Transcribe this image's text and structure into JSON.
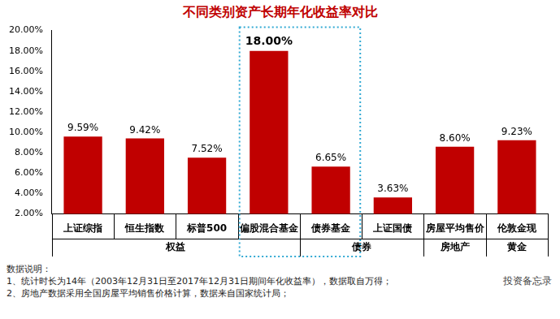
{
  "chart_data": {
    "type": "bar",
    "title": "不同类别资产长期年化收益率对比",
    "categories": [
      "上证综指",
      "恒生指数",
      "标普500",
      "偏股混合基金",
      "债券基金",
      "上证国债",
      "房屋平均售价",
      "伦敦金现"
    ],
    "values": [
      9.59,
      9.42,
      7.52,
      18.0,
      6.65,
      3.63,
      8.6,
      9.23
    ],
    "value_labels": [
      "9.59%",
      "9.42%",
      "7.52%",
      "18.00%",
      "6.65%",
      "3.63%",
      "8.60%",
      "9.23%"
    ],
    "groups": [
      {
        "name": "权益",
        "categories": [
          "上证综指",
          "恒生指数",
          "标普500",
          "偏股混合基金"
        ]
      },
      {
        "name": "债券",
        "categories": [
          "债券基金",
          "上证国债"
        ]
      },
      {
        "name": "房地产",
        "categories": [
          "房屋平均售价"
        ]
      },
      {
        "name": "黄金",
        "categories": [
          "伦敦金现"
        ]
      }
    ],
    "color": "#c00000",
    "ylim": [
      2,
      20
    ],
    "yticks": [
      {
        "value": 2,
        "label": "2.00%"
      },
      {
        "value": 4,
        "label": "4.00%"
      },
      {
        "value": 6,
        "label": "6.00%"
      },
      {
        "value": 8,
        "label": "8.00%"
      },
      {
        "value": 10,
        "label": "10.00%"
      },
      {
        "value": 12,
        "label": "12.00%"
      },
      {
        "value": 14,
        "label": "14.00%"
      },
      {
        "value": 16,
        "label": "16.00%"
      },
      {
        "value": 18,
        "label": "18.00%"
      },
      {
        "value": 20,
        "label": "20.00%"
      }
    ],
    "grid": false,
    "data_labels": true,
    "notes": [
      "数据说明：",
      "1、统计时长为14年（2003年12月31日至2017年12月31日期间年化收益率），数据取自万得；",
      "2、房地产数据采用全国房屋平均销售价格计算，数据来自国家统计局；"
    ],
    "watermark": "投资备忘录"
  }
}
